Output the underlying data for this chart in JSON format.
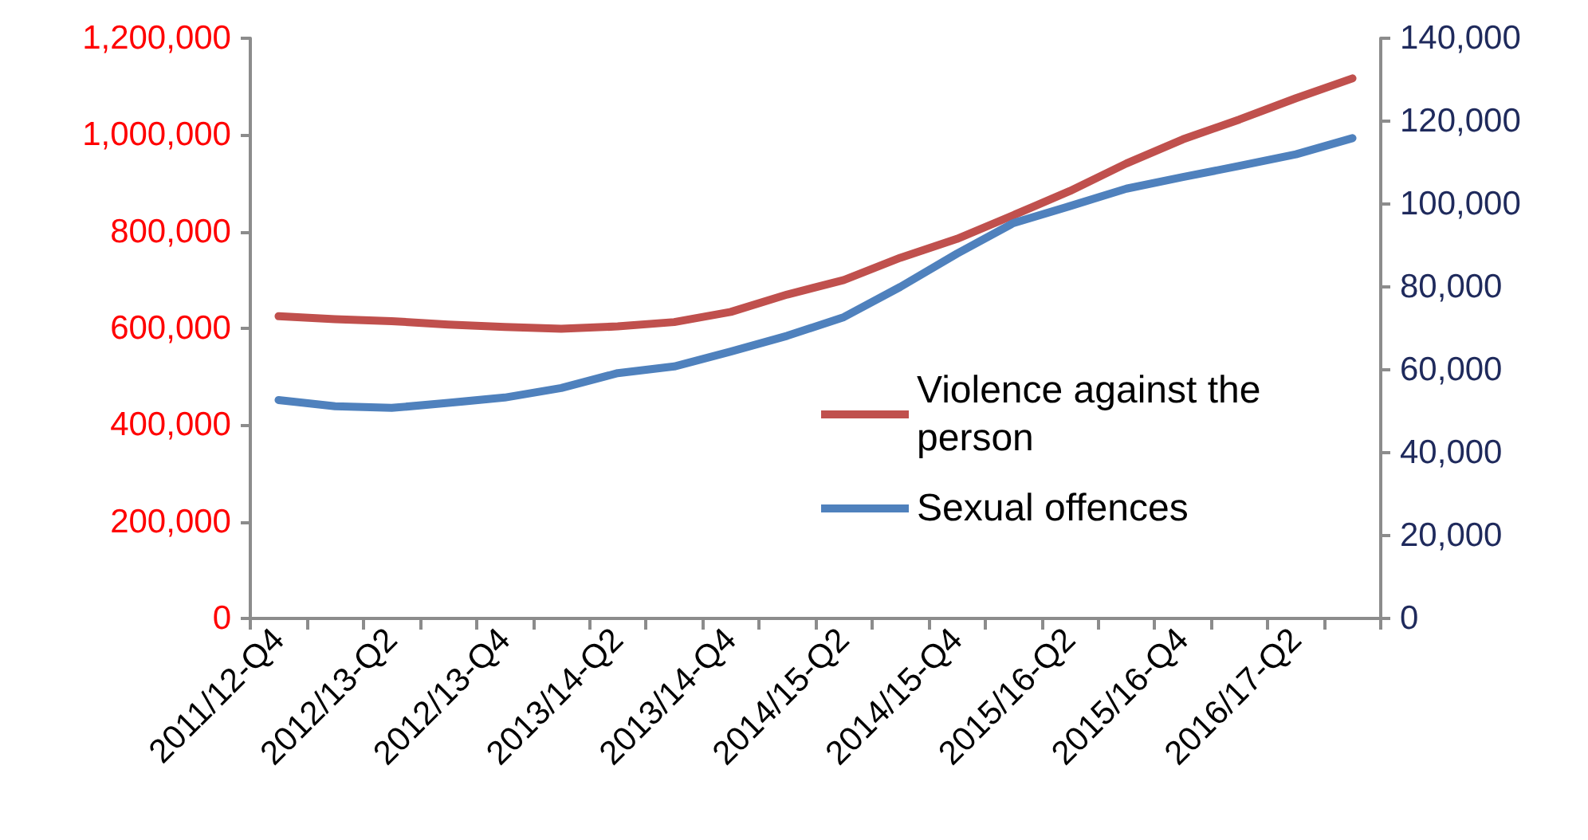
{
  "chart_data": {
    "type": "line",
    "categories": [
      "2011/12-Q4",
      null,
      "2012/13-Q2",
      null,
      "2012/13-Q4",
      null,
      "2013/14-Q2",
      null,
      "2013/14-Q4",
      null,
      "2014/15-Q2",
      null,
      "2014/15-Q4",
      null,
      "2015/16-Q2",
      null,
      "2015/16-Q4",
      null,
      "2016/17-Q2",
      null
    ],
    "series": [
      {
        "name": "Violence against the person",
        "color": "#c0504d",
        "values": [
          625000,
          619000,
          615000,
          608000,
          603000,
          599000,
          604000,
          613000,
          634000,
          670000,
          700000,
          746000,
          785000,
          834000,
          884000,
          941000,
          991000,
          1032000,
          1076000,
          1117000
        ]
      },
      {
        "name": "Sexual offences",
        "color": "#4f81bd",
        "axis": "y2",
        "values": [
          52700,
          51200,
          50800,
          52000,
          53300,
          55600,
          59200,
          60800,
          64400,
          68200,
          72700,
          80000,
          88000,
          95400,
          99500,
          103700,
          106500,
          109200,
          112000,
          115900
        ]
      }
    ],
    "ylim": [
      0,
      1200000
    ],
    "yticks": [
      0,
      {
        "value": 200000,
        "label": "200,000"
      },
      {
        "value": 400000,
        "label": "400,000"
      },
      {
        "value": 600000,
        "label": "600,000"
      },
      {
        "value": 800000,
        "label": "800,000"
      },
      {
        "value": 1000000,
        "label": "1,000,000"
      },
      {
        "value": 1200000,
        "label": "1,200,000"
      }
    ],
    "y2lim": [
      0,
      140000
    ],
    "y2ticks": [
      0,
      {
        "value": 20000,
        "label": "20,000"
      },
      {
        "value": 40000,
        "label": "40,000"
      },
      {
        "value": 60000,
        "label": "60,000"
      },
      {
        "value": 80000,
        "label": "80,000"
      },
      {
        "value": 100000,
        "label": "100,000"
      },
      {
        "value": 120000,
        "label": "120,000"
      },
      {
        "value": 140000,
        "label": "140,000"
      }
    ],
    "grid": false,
    "legend": "right",
    "marker": "none"
  }
}
